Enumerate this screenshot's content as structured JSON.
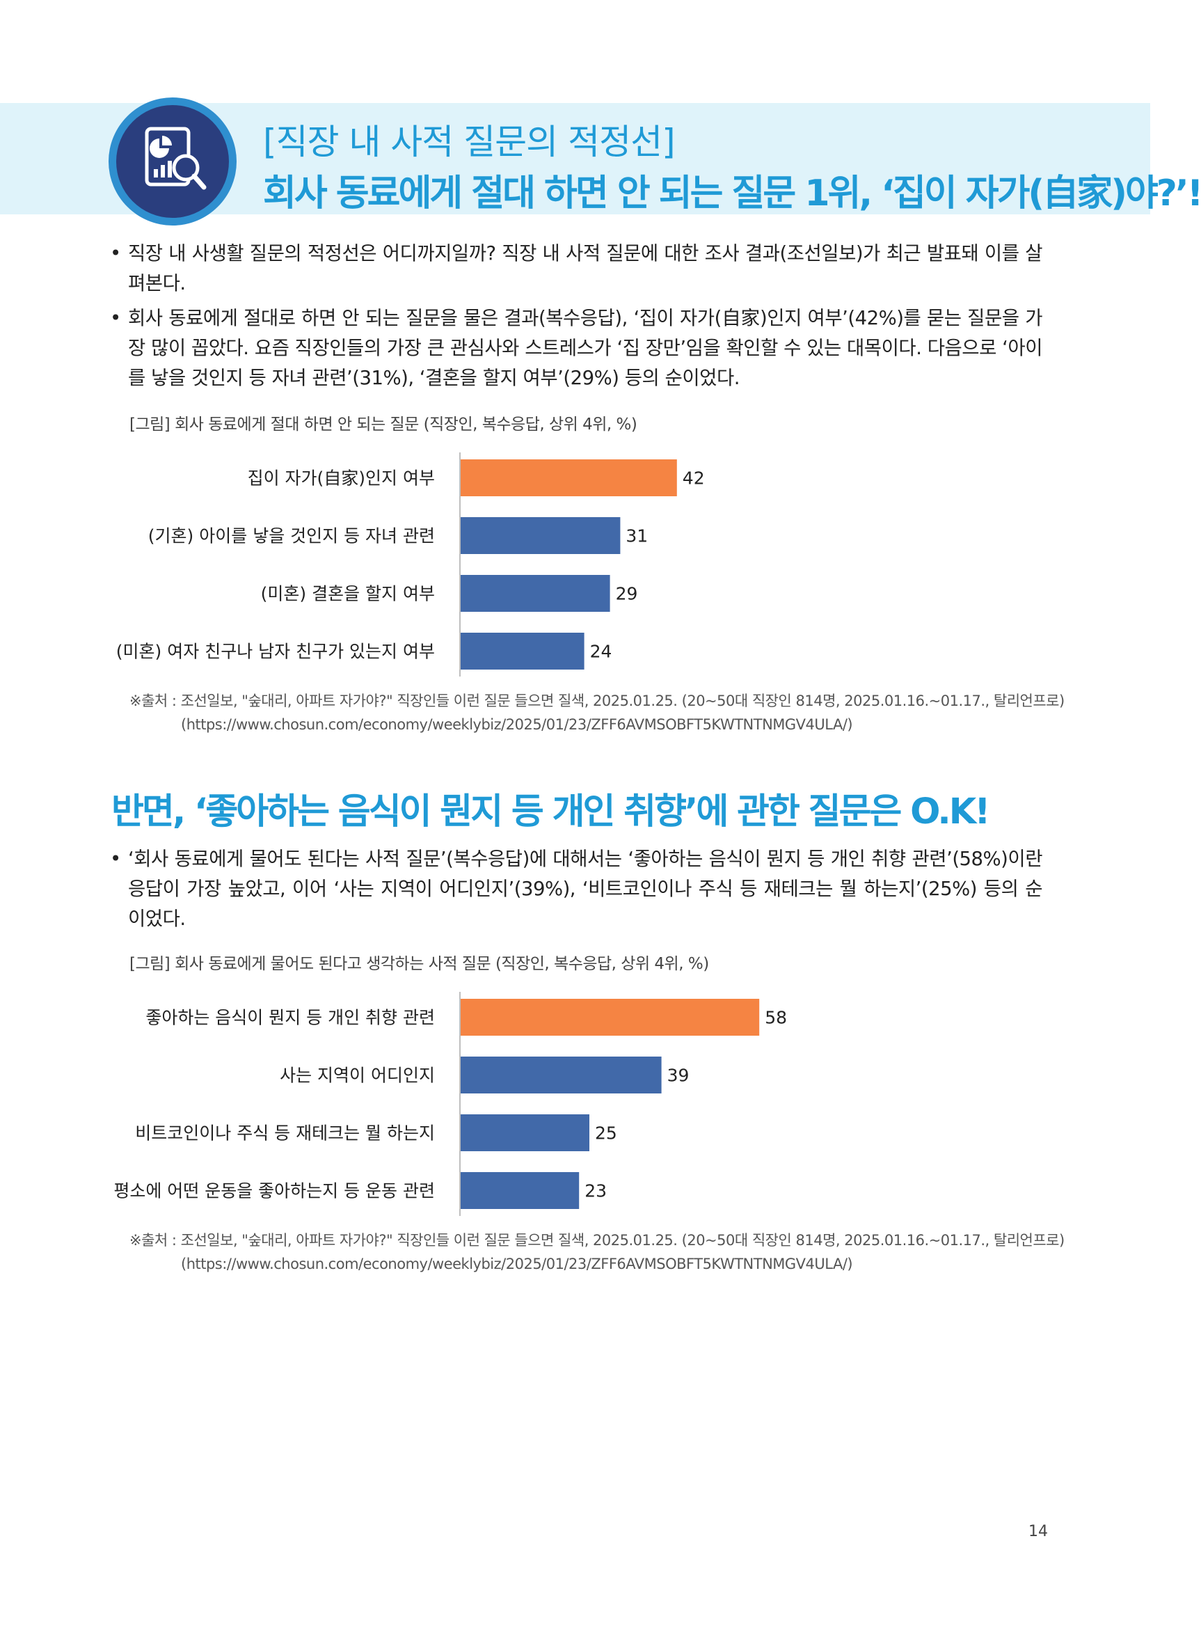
{
  "header": {
    "title_line1": "[직장 내 사적 질문의 적정선]",
    "title_line2": "회사 동료에게 절대 하면 안 되는 질문 1위, ‘집이 자가(自家)야?’!",
    "icon": "analytics-magnifier-icon"
  },
  "intro": {
    "bullets": [
      "직장 내 사생활 질문의 적정선은 어디까지일까? 직장 내 사적 질문에 대한 조사 결과(조선일보)가 최근 발표돼 이를 살펴본다.",
      "회사 동료에게 절대로 하면 안 되는 질문을 물은 결과(복수응답), ‘집이 자가(自家)인지 여부’(42%)를 묻는 질문을 가장 많이 꼽았다. 요즘 직장인들의 가장 큰 관심사와 스트레스가 ‘집 장만’임을 확인할 수 있는 대목이다. 다음으로 ‘아이를 낳을 것인지 등 자녀 관련’(31%), ‘결혼을 할지 여부’(29%) 등의 순이었다."
    ]
  },
  "figure1": {
    "caption": "[그림] 회사 동료에게 절대 하면 안 되는 질문 (직장인, 복수응답, 상위 4위, %)",
    "source_line1": "※출처 : 조선일보, \"숲대리, 아파트 자가야?\" 직장인들 이런 질문 들으면 질색, 2025.01.25. (20~50대 직장인 814명, 2025.01.16.~01.17., 탈리언프로)",
    "source_line2": "(https://www.chosun.com/economy/weeklybiz/2025/01/23/ZFF6AVMSOBFT5KWTNTNMGV4ULA/)"
  },
  "section2": {
    "title": "반면, ‘좋아하는 음식이 뭔지 등 개인 취향’에 관한 질문은 O.K!",
    "bullets": [
      "‘회사 동료에게 물어도 된다는 사적 질문’(복수응답)에 대해서는 ‘좋아하는 음식이 뭔지 등 개인 취향 관련’(58%)이란 응답이 가장 높았고, 이어 ‘사는 지역이 어디인지’(39%), ‘비트코인이나 주식 등 재테크는 뭘 하는지’(25%) 등의 순이었다."
    ]
  },
  "figure2": {
    "caption": "[그림] 회사 동료에게 물어도 된다고 생각하는 사적 질문 (직장인, 복수응답, 상위 4위, %)",
    "source_line1": "※출처 : 조선일보, \"숲대리, 아파트 자가야?\" 직장인들 이런 질문 들으면 질색, 2025.01.25. (20~50대 직장인 814명, 2025.01.16.~01.17., 탈리언프로)",
    "source_line2": "(https://www.chosun.com/economy/weeklybiz/2025/01/23/ZFF6AVMSOBFT5KWTNTNMGV4ULA/)"
  },
  "page_number": "14",
  "colors": {
    "accent": "#1f9ad6",
    "band": "#dff3fa",
    "highlight_bar": "#f58443",
    "bar": "#4169a9"
  },
  "chart_data": [
    {
      "type": "bar",
      "orientation": "horizontal",
      "title": "",
      "categories": [
        "집이 자가(自家)인지 여부",
        "(기혼) 아이를 낳을 것인지 등 자녀 관련",
        "(미혼) 결혼을 할지 여부",
        "(미혼) 여자 친구나 남자 친구가 있는지 여부"
      ],
      "values": [
        42,
        31,
        29,
        24
      ],
      "highlight_index": 0,
      "xlim": [
        0,
        100
      ],
      "grid": false,
      "data_labels": true
    },
    {
      "type": "bar",
      "orientation": "horizontal",
      "title": "",
      "categories": [
        "좋아하는 음식이 뭔지 등 개인 취향 관련",
        "사는 지역이 어디인지",
        "비트코인이나 주식 등 재테크는 뭘 하는지",
        "평소에 어떤 운동을 좋아하는지 등 운동 관련"
      ],
      "values": [
        58,
        39,
        25,
        23
      ],
      "highlight_index": 0,
      "xlim": [
        0,
        100
      ],
      "grid": false,
      "data_labels": true
    }
  ]
}
